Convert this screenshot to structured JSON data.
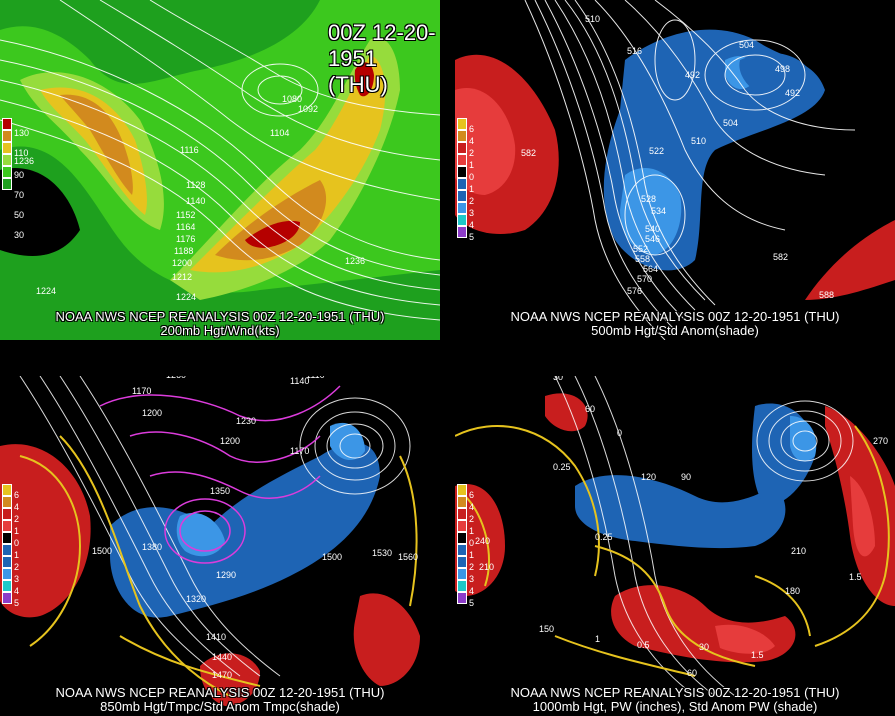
{
  "header": {
    "date_label": "00Z 12-20-1951 (THU)"
  },
  "panels": [
    {
      "id": "p200",
      "caption_line1": "NOAA NWS NCEP REANALYSIS 00Z 12-20-1951 (THU)",
      "caption_line2": "200mb Hgt/Wnd(kts)",
      "colorbar": [
        "130",
        "110",
        "90",
        "70",
        "50",
        "30"
      ],
      "contour_labels": [
        "1080",
        "1092",
        "1104",
        "1116",
        "1128",
        "1140",
        "1152",
        "1164",
        "1176",
        "1188",
        "1200",
        "1212",
        "1224",
        "1236",
        "1236",
        "1224"
      ]
    },
    {
      "id": "p500",
      "caption_line1": "NOAA NWS NCEP REANALYSIS 00Z 12-20-1951 (THU)",
      "caption_line2": "500mb Hgt/Std Anom(shade)",
      "colorbar": [
        "6",
        "4",
        "2",
        "1",
        "0",
        "1",
        "2",
        "3",
        "4",
        "5"
      ],
      "contour_labels": [
        "510",
        "516",
        "504",
        "498",
        "492",
        "492",
        "504",
        "510",
        "522",
        "528",
        "534",
        "540",
        "546",
        "552",
        "558",
        "564",
        "570",
        "576",
        "582",
        "582",
        "588"
      ]
    },
    {
      "id": "p850",
      "caption_line1": "NOAA NWS NCEP REANALYSIS 00Z 12-20-1951 (THU)",
      "caption_line2": "850mb Hgt/Tmpc/Std Anom Tmpc(shade)",
      "colorbar": [
        "6",
        "4",
        "2",
        "1",
        "0",
        "1",
        "2",
        "3",
        "4",
        "5"
      ],
      "contour_labels": [
        "1260",
        "1170",
        "1200",
        "1230",
        "1200",
        "1170",
        "1140",
        "1110",
        "1500",
        "1380",
        "1350",
        "1320",
        "1290",
        "1500",
        "1530",
        "1560",
        "1410",
        "1440",
        "1470"
      ]
    },
    {
      "id": "p1000",
      "caption_line1": "NOAA NWS NCEP REANALYSIS 00Z 12-20-1951 (THU)",
      "caption_line2": "1000mb Hgt, PW (inches), Std Anom PW (shade)",
      "colorbar": [
        "6",
        "4",
        "2",
        "1",
        "0",
        "1",
        "2",
        "3",
        "4",
        "5"
      ],
      "contour_labels": [
        "30",
        "60",
        "0",
        "0.25",
        "120",
        "90",
        "0.25",
        "210",
        "150",
        "180",
        "1.5",
        "0.5",
        "1",
        "30",
        "1.5",
        "240",
        "210",
        "60",
        "270"
      ]
    }
  ],
  "colors": {
    "jet_dark": "#b50000",
    "jet_orange": "#d28a1e",
    "jet_yellow": "#e6c31e",
    "jet_green1": "#96dc3c",
    "jet_green2": "#3cc81e",
    "jet_green3": "#1ea01e",
    "anom_pos": "#c81e1e",
    "anom_neg": "#1e64b4",
    "anom_light": "#3c96e6"
  }
}
